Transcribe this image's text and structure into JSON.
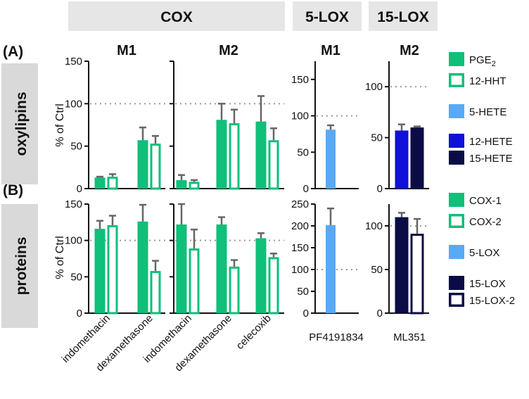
{
  "headers": {
    "cox": "COX",
    "lox5": "5-LOX",
    "lox15": "15-LOX"
  },
  "sections": {
    "a_label": "(A)",
    "b_label": "(B)",
    "a_side": "oxylipins",
    "b_side": "proteins"
  },
  "y_axis_label": "% of Ctrl",
  "reference_line": 100,
  "legends": {
    "oxylipins": [
      {
        "name": "PGE",
        "sub": "2",
        "fill": "#0fbf7a",
        "stroke": "#0fbf7a",
        "hollow": false
      },
      {
        "name": "12-HHT",
        "sub": "",
        "fill": "#ffffff",
        "stroke": "#0fbf7a",
        "hollow": true
      },
      {
        "name": "5-HETE",
        "sub": "",
        "fill": "#5aa9f5",
        "stroke": "#5aa9f5",
        "hollow": false
      },
      {
        "name": "12-HETE",
        "sub": "",
        "fill": "#1010d8",
        "stroke": "#1010d8",
        "hollow": false
      },
      {
        "name": "15-HETE",
        "sub": "",
        "fill": "#0b0c45",
        "stroke": "#0b0c45",
        "hollow": false
      }
    ],
    "proteins": [
      {
        "name": "COX-1",
        "sub": "",
        "fill": "#0fbf7a",
        "stroke": "#0fbf7a",
        "hollow": false
      },
      {
        "name": "COX-2",
        "sub": "",
        "fill": "#ffffff",
        "stroke": "#0fbf7a",
        "hollow": true
      },
      {
        "name": "5-LOX",
        "sub": "",
        "fill": "#5aa9f5",
        "stroke": "#5aa9f5",
        "hollow": false
      },
      {
        "name": "15-LOX",
        "sub": "",
        "fill": "#0b0c45",
        "stroke": "#0b0c45",
        "hollow": false
      },
      {
        "name": "15-LOX-2",
        "sub": "",
        "fill": "#ffffff",
        "stroke": "#0b0c45",
        "hollow": true
      }
    ]
  },
  "x_labels": {
    "cox_m1": [
      "indomethacin",
      "dexamethasone"
    ],
    "cox_m2": [
      "indomethacin",
      "dexamethasone",
      "celecoxib"
    ],
    "lox5": "PF4191834",
    "lox15": "ML351"
  },
  "chart_data": [
    {
      "id": "a_cox_m1",
      "type": "bar",
      "title": "M1",
      "ylabel": "% of Ctrl",
      "ylim": [
        0,
        150
      ],
      "yticks": [
        0,
        50,
        100,
        150
      ],
      "categories": [
        "indomethacin",
        "dexamethasone"
      ],
      "series": [
        {
          "name": "PGE2",
          "values": [
            13,
            57
          ],
          "errors": [
            1,
            15
          ]
        },
        {
          "name": "12-HHT",
          "values": [
            14,
            53
          ],
          "errors": [
            3,
            9
          ]
        }
      ]
    },
    {
      "id": "a_cox_m2",
      "type": "bar",
      "title": "M2",
      "ylabel": "",
      "ylim": [
        0,
        150
      ],
      "yticks": [],
      "categories": [
        "indomethacin",
        "dexamethasone",
        "celecoxib"
      ],
      "series": [
        {
          "name": "PGE2",
          "values": [
            10,
            81,
            79
          ],
          "errors": [
            6,
            19,
            30
          ]
        },
        {
          "name": "12-HHT",
          "values": [
            8,
            77,
            57
          ],
          "errors": [
            2,
            16,
            14
          ]
        }
      ]
    },
    {
      "id": "a_lox5",
      "type": "bar",
      "title": "M1",
      "ylabel": "",
      "ylim": [
        0,
        175
      ],
      "yticks": [
        0,
        50,
        100,
        150
      ],
      "categories": [
        "PF4191834"
      ],
      "series": [
        {
          "name": "5-HETE",
          "values": [
            81
          ],
          "errors": [
            6
          ]
        }
      ]
    },
    {
      "id": "a_lox15",
      "type": "bar",
      "title": "M2",
      "ylabel": "",
      "ylim": [
        0,
        125
      ],
      "yticks": [
        0,
        50,
        100
      ],
      "categories": [
        "ML351"
      ],
      "series": [
        {
          "name": "12-HETE",
          "values": [
            57
          ],
          "errors": [
            6
          ]
        },
        {
          "name": "15-HETE",
          "values": [
            60
          ],
          "errors": [
            1
          ]
        }
      ]
    },
    {
      "id": "b_cox_m1",
      "type": "bar",
      "title": "",
      "ylabel": "% of Ctrl",
      "ylim": [
        0,
        150
      ],
      "yticks": [
        0,
        50,
        100,
        150
      ],
      "categories": [
        "indomethacin",
        "dexamethasone"
      ],
      "series": [
        {
          "name": "COX-1",
          "values": [
            116,
            126
          ],
          "errors": [
            11,
            23
          ]
        },
        {
          "name": "COX-2",
          "values": [
            121,
            58
          ],
          "errors": [
            13,
            14
          ]
        }
      ]
    },
    {
      "id": "b_cox_m2",
      "type": "bar",
      "title": "",
      "ylabel": "",
      "ylim": [
        0,
        150
      ],
      "yticks": [],
      "categories": [
        "indomethacin",
        "dexamethasone",
        "celecoxib"
      ],
      "series": [
        {
          "name": "COX-1",
          "values": [
            122,
            122,
            103
          ],
          "errors": [
            28,
            10,
            7
          ]
        },
        {
          "name": "COX-2",
          "values": [
            89,
            64,
            77
          ],
          "errors": [
            26,
            9,
            5
          ]
        }
      ]
    },
    {
      "id": "b_lox5",
      "type": "bar",
      "title": "",
      "ylabel": "",
      "ylim": [
        0,
        250
      ],
      "yticks": [
        0,
        50,
        100,
        150,
        200,
        250
      ],
      "categories": [
        "PF4191834"
      ],
      "series": [
        {
          "name": "5-LOX",
          "values": [
            202
          ],
          "errors": [
            38
          ]
        }
      ]
    },
    {
      "id": "b_lox15",
      "type": "bar",
      "title": "",
      "ylabel": "",
      "ylim": [
        0,
        125
      ],
      "yticks": [
        0,
        50,
        100
      ],
      "categories": [
        "ML351"
      ],
      "series": [
        {
          "name": "15-LOX",
          "values": [
            110
          ],
          "errors": [
            5
          ]
        },
        {
          "name": "15-LOX-2",
          "values": [
            91
          ],
          "errors": [
            17
          ]
        }
      ]
    }
  ]
}
